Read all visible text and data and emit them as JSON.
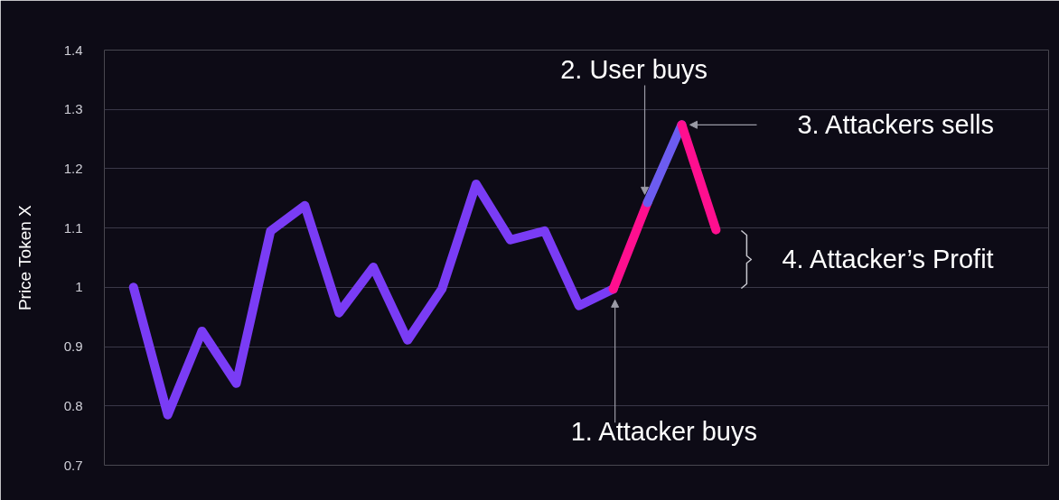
{
  "chart_data": {
    "type": "line",
    "ylabel": "Price Token X",
    "ylim": [
      0.7,
      1.4
    ],
    "yticks": [
      0.7,
      0.8,
      0.9,
      1,
      1.1,
      1.2,
      1.3,
      1.4
    ],
    "grid": "y",
    "marker": "none",
    "line_style": "solid",
    "categories": [
      null,
      null,
      null,
      null,
      null,
      null,
      null,
      null,
      null,
      null,
      null,
      null,
      null,
      null,
      null,
      null,
      null,
      null
    ],
    "series": [
      {
        "color": "#7a3cf5",
        "values": [
          1.0,
          0.785,
          0.926,
          0.838,
          1.095,
          1.138,
          0.957,
          1.034,
          0.911,
          0.997,
          1.174,
          1.08,
          1.095,
          0.969,
          0.997,
          null,
          null,
          null
        ]
      },
      {
        "color": "#ff0f8f",
        "values": [
          null,
          null,
          null,
          null,
          null,
          null,
          null,
          null,
          null,
          null,
          null,
          null,
          null,
          null,
          0.997,
          1.143,
          null,
          null
        ]
      },
      {
        "color": "#6c5cf0",
        "values": [
          null,
          null,
          null,
          null,
          null,
          null,
          null,
          null,
          null,
          null,
          null,
          null,
          null,
          null,
          null,
          1.143,
          1.274,
          null
        ]
      },
      {
        "color": "#ff0f8f",
        "values": [
          null,
          null,
          null,
          null,
          null,
          null,
          null,
          null,
          null,
          null,
          null,
          null,
          null,
          null,
          null,
          null,
          1.274,
          1.097
        ]
      }
    ],
    "annotations": [
      "1. Attacker buys",
      "2. User buys",
      "3. Attackers sells",
      "4. Attacker’s Profit"
    ]
  }
}
